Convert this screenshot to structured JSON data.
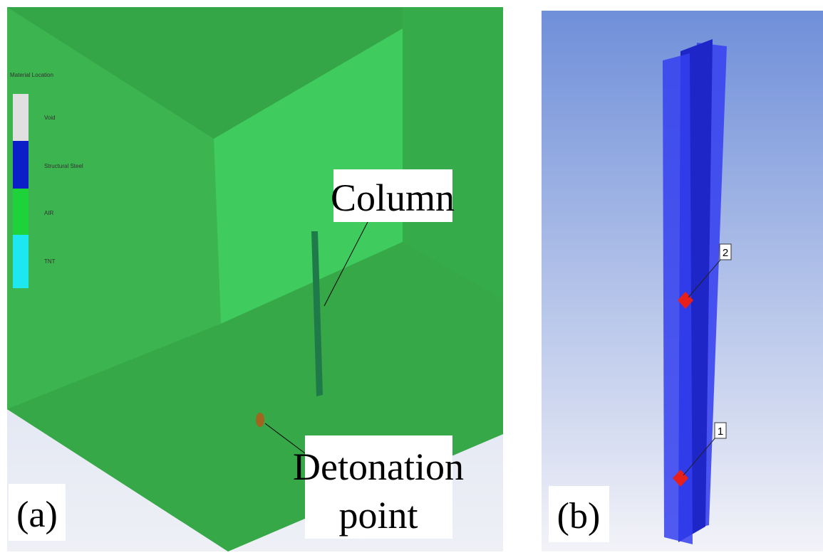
{
  "panel_a": {
    "label": "(a)",
    "legend": {
      "title": "Material Location",
      "items": [
        "Void",
        "Structural Steel",
        "AIR",
        "TNT"
      ]
    },
    "column_label": "Column",
    "detonation_label": [
      "Detonation",
      "point"
    ]
  },
  "panel_b": {
    "label": "(b)",
    "gauges": [
      "1",
      "2"
    ]
  }
}
